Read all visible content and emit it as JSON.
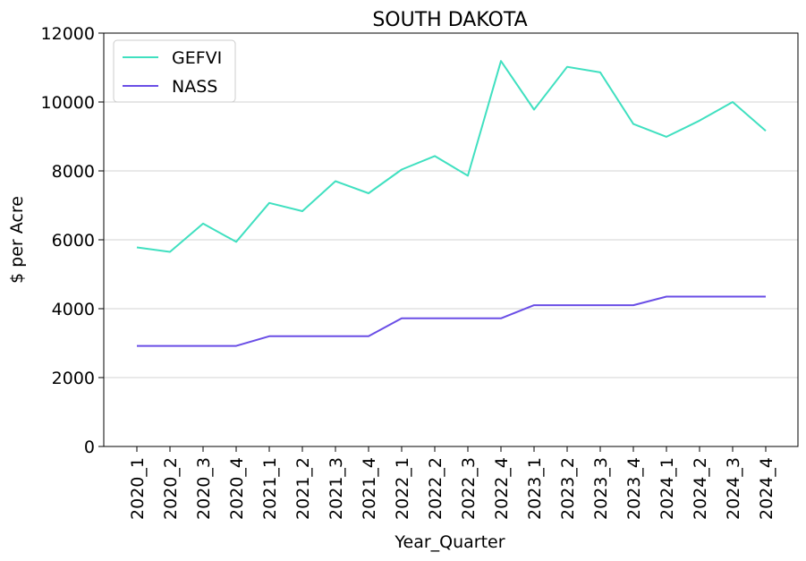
{
  "chart_data": {
    "type": "line",
    "title": "SOUTH DAKOTA",
    "xlabel": "Year_Quarter",
    "ylabel": "$ per Acre",
    "ylim": [
      0,
      12000
    ],
    "yticks": [
      0,
      2000,
      4000,
      6000,
      8000,
      10000,
      12000
    ],
    "grid": "horizontal",
    "legend_position": "top-left",
    "categories": [
      "2020_1",
      "2020_2",
      "2020_3",
      "2020_4",
      "2021_1",
      "2021_2",
      "2021_3",
      "2021_4",
      "2022_1",
      "2022_2",
      "2022_3",
      "2022_4",
      "2023_1",
      "2023_2",
      "2023_3",
      "2023_4",
      "2024_1",
      "2024_2",
      "2024_3",
      "2024_4"
    ],
    "series": [
      {
        "name": "GEFVI",
        "color": "#40e0c0",
        "values": [
          5780,
          5650,
          6470,
          5940,
          7070,
          6830,
          7700,
          7350,
          8040,
          8430,
          7860,
          11190,
          9780,
          11020,
          10860,
          9360,
          8990,
          9460,
          10000,
          9160
        ]
      },
      {
        "name": "NASS",
        "color": "#6a4ee6",
        "values": [
          2920,
          2920,
          2920,
          2920,
          3200,
          3200,
          3200,
          3200,
          3720,
          3720,
          3720,
          3720,
          4100,
          4100,
          4100,
          4100,
          4350,
          4350,
          4350,
          4350
        ]
      }
    ]
  }
}
